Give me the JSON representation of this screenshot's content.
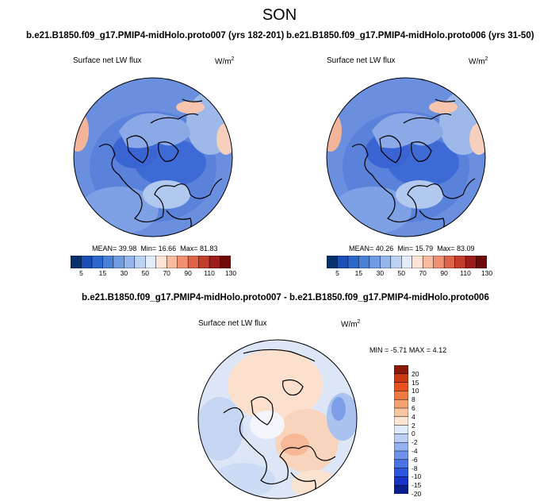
{
  "figure": {
    "title": "SON",
    "variable": "Surface net LW flux",
    "units_base": "W/m",
    "units_exp": "2"
  },
  "panels": [
    {
      "subtitle": "b.e21.B1850.f09_g17.PMIP4-midHolo.proto007 (yrs 182-201)",
      "stats": {
        "mean": "39.98",
        "min": "16.66",
        "max": "81.83"
      }
    },
    {
      "subtitle": "b.e21.B1850.f09_g17.PMIP4-midHolo.proto006 (yrs 31-50)",
      "stats": {
        "mean": "40.26",
        "min": "15.79",
        "max": "83.09"
      }
    }
  ],
  "diff_panel": {
    "subtitle": "b.e21.B1850.f09_g17.PMIP4-midHolo.proto007 - b.e21.B1850.f09_g17.PMIP4-midHolo.proto006",
    "stats": {
      "min": "-5.71",
      "max": "4.12"
    }
  },
  "labels": {
    "mean": "MEAN=",
    "min": "Min=",
    "max": "Max=",
    "min_upper": "MIN =",
    "max_upper": "MAX ="
  },
  "colorbar_main": {
    "colors": [
      "#08306b",
      "#1c4fb6",
      "#2b68cc",
      "#4a80d8",
      "#6e9be3",
      "#94b6ec",
      "#bcd2f2",
      "#e2ecfa",
      "#fde4d6",
      "#f8bba1",
      "#f08f72",
      "#dd6448",
      "#c43c2c",
      "#9c1d1a",
      "#6e0a0a"
    ],
    "labels": [
      "5",
      "15",
      "30",
      "50",
      "70",
      "90",
      "110",
      "130"
    ]
  },
  "colorbar_diff": {
    "colors": [
      "#0a1e8c",
      "#1734c6",
      "#2d55de",
      "#4a73e6",
      "#6f93ec",
      "#94b2f1",
      "#bcd0f6",
      "#e2ebfb",
      "#fde6d3",
      "#f9c6a4",
      "#f5a070",
      "#f17a44",
      "#e8521d",
      "#c93a12",
      "#8c1a0a"
    ],
    "labels": [
      "20",
      "15",
      "10",
      "8",
      "6",
      "4",
      "2",
      "0",
      "-2",
      "-4",
      "-6",
      "-8",
      "-10",
      "-15",
      "-20"
    ]
  },
  "colors": {
    "ocean_main": "#5f86dc",
    "land_main": "#3e6ed8",
    "ocean_diff": "#cfdcf3",
    "land_diff": "#f6dcc9"
  }
}
